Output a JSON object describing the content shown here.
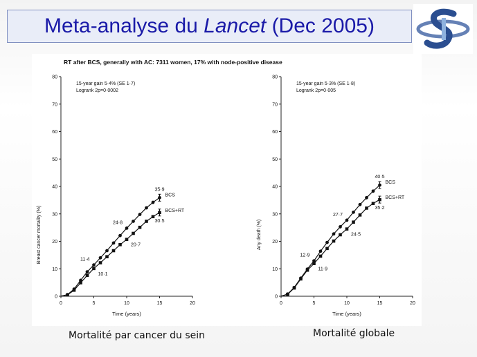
{
  "slide": {
    "title_prefix": "Meta-analyse du ",
    "title_italic": "Lancet",
    "title_suffix": " (Dec 2005)",
    "caption_left": "Mortalité par cancer du sein",
    "caption_right": "Mortalité globale"
  },
  "figure": {
    "header": "RT after BCS, generally with AC: 7311 women, 17% with node-positive disease"
  },
  "chart_data": [
    {
      "type": "line",
      "stats": [
        "15-year gain 5·4% (SE 1·7)",
        "Logrank 2p=0·0002"
      ],
      "xlabel": "Time (years)",
      "ylabel": "Breast cancer mortality (%)",
      "xlim": [
        0,
        20
      ],
      "ylim": [
        0,
        80
      ],
      "xticks": [
        0,
        5,
        10,
        15,
        20
      ],
      "yticks": [
        0,
        10,
        20,
        30,
        40,
        50,
        60,
        70,
        80
      ],
      "series": [
        {
          "name": "BCS",
          "marker": "circle",
          "x": [
            0,
            1,
            2,
            3,
            4,
            5,
            6,
            7,
            8,
            9,
            10,
            11,
            12,
            13,
            14,
            15
          ],
          "values": [
            0,
            0.6,
            2.6,
            5.8,
            8.9,
            11.4,
            14.0,
            16.6,
            19.4,
            22.1,
            24.8,
            27.3,
            29.8,
            32.2,
            34.2,
            35.9
          ],
          "labels": [
            {
              "x": 5,
              "text": "11·4"
            },
            {
              "x": 10,
              "text": "24·8"
            },
            {
              "x": 15,
              "text": "35·9"
            }
          ]
        },
        {
          "name": "BCS+RT",
          "marker": "square",
          "x": [
            0,
            1,
            2,
            3,
            4,
            5,
            6,
            7,
            8,
            9,
            10,
            11,
            12,
            13,
            14,
            15
          ],
          "values": [
            0,
            0.5,
            2.2,
            4.9,
            7.6,
            10.1,
            12.2,
            14.4,
            16.6,
            18.8,
            20.7,
            22.9,
            25.1,
            27.3,
            29.0,
            30.5
          ],
          "labels": [
            {
              "x": 5,
              "text": "10·1"
            },
            {
              "x": 10,
              "text": "20·7"
            },
            {
              "x": 15,
              "text": "30·5"
            }
          ]
        }
      ]
    },
    {
      "type": "line",
      "stats": [
        "15-year gain 5·3% (SE 1·8)",
        "Logrank 2p=0·005"
      ],
      "xlabel": "Time (years)",
      "ylabel": "Any death (%)",
      "xlim": [
        0,
        20
      ],
      "ylim": [
        0,
        80
      ],
      "xticks": [
        0,
        5,
        10,
        15,
        20
      ],
      "yticks": [
        0,
        10,
        20,
        30,
        40,
        50,
        60,
        70,
        80
      ],
      "series": [
        {
          "name": "BCS",
          "marker": "circle",
          "x": [
            0,
            1,
            2,
            3,
            4,
            5,
            6,
            7,
            8,
            9,
            10,
            11,
            12,
            13,
            14,
            15
          ],
          "values": [
            0,
            0.8,
            3.2,
            6.6,
            9.9,
            12.9,
            16.4,
            19.6,
            22.7,
            25.3,
            27.7,
            30.6,
            33.4,
            35.9,
            38.3,
            40.5
          ],
          "labels": [
            {
              "x": 5,
              "text": "12·9"
            },
            {
              "x": 10,
              "text": "27·7"
            },
            {
              "x": 15,
              "text": "40·5"
            }
          ]
        },
        {
          "name": "BCS+RT",
          "marker": "square",
          "x": [
            0,
            1,
            2,
            3,
            4,
            5,
            6,
            7,
            8,
            9,
            10,
            11,
            12,
            13,
            14,
            15
          ],
          "values": [
            0,
            0.7,
            3.0,
            6.3,
            9.5,
            11.9,
            14.6,
            17.4,
            20.1,
            22.4,
            24.5,
            27.0,
            29.6,
            32.1,
            33.8,
            35.2
          ],
          "labels": [
            {
              "x": 5,
              "text": "11·9"
            },
            {
              "x": 10,
              "text": "24·5"
            },
            {
              "x": 15,
              "text": "35·2"
            }
          ]
        }
      ]
    }
  ]
}
